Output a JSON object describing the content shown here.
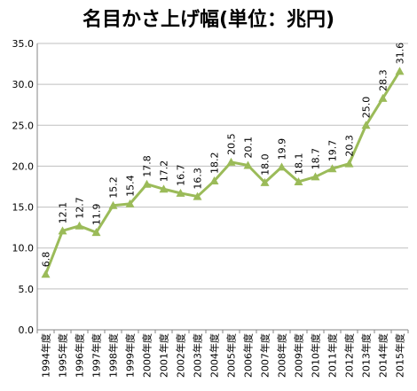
{
  "chart_data": {
    "type": "line",
    "title": "名目かさ上げ幅(単位：兆円)",
    "xlabel": "",
    "ylabel": "",
    "ylim": [
      0,
      35
    ],
    "yticks": [
      "0.0",
      "5.0",
      "10.0",
      "15.0",
      "20.0",
      "25.0",
      "30.0",
      "35.0"
    ],
    "grid": true,
    "legend": "none",
    "categories": [
      "1994年度",
      "1995年度",
      "1996年度",
      "1997年度",
      "1998年度",
      "1999年度",
      "2000年度",
      "2001年度",
      "2002年度",
      "2003年度",
      "2004年度",
      "2005年度",
      "2006年度",
      "2007年度",
      "2008年度",
      "2009年度",
      "2010年度",
      "2011年度",
      "2012年度",
      "2013年度",
      "2014年度",
      "2015年度"
    ],
    "series": [
      {
        "values": [
          6.8,
          12.1,
          12.7,
          11.9,
          15.2,
          15.4,
          17.8,
          17.2,
          16.7,
          16.3,
          18.2,
          20.5,
          20.1,
          18.0,
          19.9,
          18.1,
          18.7,
          19.7,
          20.3,
          25.0,
          28.3,
          31.6
        ],
        "labels": [
          "6.8",
          "12.1",
          "12.7",
          "11.9",
          "15.2",
          "15.4",
          "17.8",
          "17.2",
          "16.7",
          "16.3",
          "18.2",
          "20.5",
          "20.1",
          "18.0",
          "19.9",
          "18.1",
          "18.7",
          "19.7",
          "20.3",
          "25.0",
          "28.3",
          "31.6"
        ],
        "color": "#9bbb59"
      }
    ],
    "grid_color": "#bfbfbf",
    "axis_color": "#868686"
  }
}
